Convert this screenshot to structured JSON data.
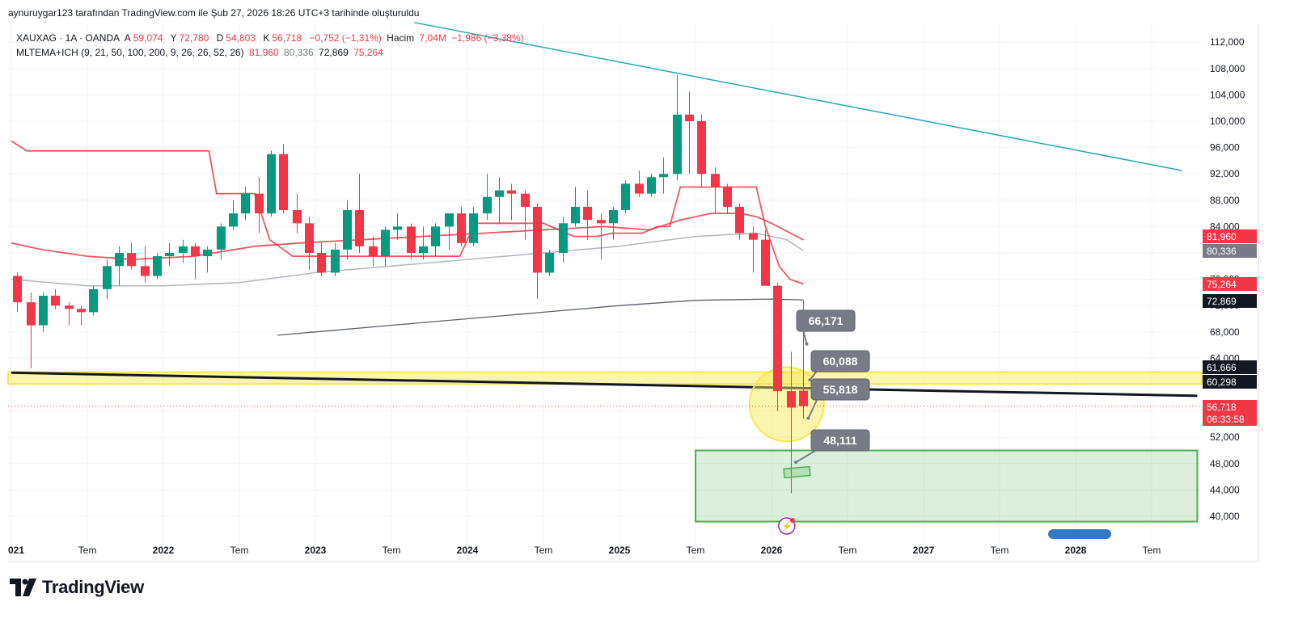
{
  "caption": "aynuruygar123 tarafından TradingView.com ile Şub 27, 2026 18:26 UTC+3 tarihinde oluşturuldu",
  "legend": {
    "symbol": "XAUXAG · 1A · OANDA",
    "o_label": "A",
    "o_value": "59,074",
    "h_label": "Y",
    "h_value": "72,780",
    "l_label": "D",
    "l_value": "54,803",
    "c_label": "K",
    "c_value": "56,718",
    "change": "−0,752 (−1,31%)",
    "volume_label": "Hacim",
    "volume_value": "7,04M",
    "volume_change": "−1,986 (−3,38%)",
    "indicator": "MLTEMA+ICH (9, 21, 50, 100, 200, 9, 26, 26, 52, 26)",
    "ind_v1": "81,960",
    "ind_v2": "80,336",
    "ind_v3": "72,869",
    "ind_v4": "75,264"
  },
  "brand": "TradingView",
  "colors": {
    "up": "#089981",
    "down": "#f23645",
    "support_zone": "#f5e94c",
    "target_zone": "#4caf50",
    "trendline": "#26a6b9"
  },
  "chart_data": {
    "type": "candlestick",
    "symbol": "XAUXAG",
    "interval": "1A",
    "ylim": [
      37,
      115
    ],
    "y_ticks": [
      40,
      44,
      48,
      52,
      64,
      68,
      72,
      76,
      84,
      88,
      92,
      96,
      100,
      104,
      108,
      112
    ],
    "y_tick_labels": [
      "40,000",
      "44,000",
      "48,000",
      "52,000",
      "64,000",
      "68,000",
      "72,000",
      "76,000",
      "84,000",
      "88,000",
      "92,000",
      "96,000",
      "100,000",
      "104,000",
      "108,000",
      "112,000"
    ],
    "x_ticks": [
      {
        "label": "021",
        "t": 2021.0
      },
      {
        "label": "Tem",
        "t": 2021.5
      },
      {
        "label": "2022",
        "t": 2022.0
      },
      {
        "label": "Tem",
        "t": 2022.5
      },
      {
        "label": "2023",
        "t": 2023.0
      },
      {
        "label": "Tem",
        "t": 2023.5
      },
      {
        "label": "2024",
        "t": 2024.0
      },
      {
        "label": "Tem",
        "t": 2024.5
      },
      {
        "label": "2025",
        "t": 2025.0
      },
      {
        "label": "Tem",
        "t": 2025.5
      },
      {
        "label": "2026",
        "t": 2026.0
      },
      {
        "label": "Tem",
        "t": 2026.5
      },
      {
        "label": "2027",
        "t": 2027.0
      },
      {
        "label": "Tem",
        "t": 2027.5
      },
      {
        "label": "2028",
        "t": 2028.0
      },
      {
        "label": "Tem",
        "t": 2028.5
      }
    ],
    "candles": [
      {
        "t": 2021.04,
        "o": 76.5,
        "h": 77,
        "l": 71,
        "c": 72.5
      },
      {
        "t": 2021.13,
        "o": 72.5,
        "h": 74,
        "l": 62.5,
        "c": 69
      },
      {
        "t": 2021.21,
        "o": 69,
        "h": 74,
        "l": 68,
        "c": 73.5
      },
      {
        "t": 2021.29,
        "o": 73.5,
        "h": 74.5,
        "l": 71.5,
        "c": 72
      },
      {
        "t": 2021.38,
        "o": 72,
        "h": 72.5,
        "l": 69,
        "c": 71.5
      },
      {
        "t": 2021.46,
        "o": 71.5,
        "h": 72,
        "l": 69,
        "c": 71
      },
      {
        "t": 2021.54,
        "o": 71,
        "h": 75,
        "l": 70.5,
        "c": 74.5
      },
      {
        "t": 2021.63,
        "o": 74.5,
        "h": 79,
        "l": 73,
        "c": 78
      },
      {
        "t": 2021.71,
        "o": 78,
        "h": 81,
        "l": 75,
        "c": 80
      },
      {
        "t": 2021.79,
        "o": 80,
        "h": 81.5,
        "l": 77.5,
        "c": 78
      },
      {
        "t": 2021.88,
        "o": 78,
        "h": 81,
        "l": 75.5,
        "c": 76.5
      },
      {
        "t": 2021.96,
        "o": 76.5,
        "h": 80,
        "l": 76,
        "c": 79.5
      },
      {
        "t": 2022.04,
        "o": 79.5,
        "h": 81.5,
        "l": 78,
        "c": 80
      },
      {
        "t": 2022.13,
        "o": 80,
        "h": 82,
        "l": 78.5,
        "c": 81
      },
      {
        "t": 2022.21,
        "o": 81,
        "h": 81.5,
        "l": 76,
        "c": 79.5
      },
      {
        "t": 2022.29,
        "o": 79.5,
        "h": 81,
        "l": 77,
        "c": 80.5
      },
      {
        "t": 2022.38,
        "o": 80.5,
        "h": 84.5,
        "l": 79,
        "c": 84
      },
      {
        "t": 2022.46,
        "o": 84,
        "h": 88,
        "l": 83.5,
        "c": 86
      },
      {
        "t": 2022.54,
        "o": 86,
        "h": 90,
        "l": 85,
        "c": 89
      },
      {
        "t": 2022.63,
        "o": 89,
        "h": 91.5,
        "l": 83,
        "c": 86
      },
      {
        "t": 2022.71,
        "o": 86,
        "h": 95.5,
        "l": 85.5,
        "c": 95
      },
      {
        "t": 2022.79,
        "o": 95,
        "h": 96.5,
        "l": 86,
        "c": 86.5
      },
      {
        "t": 2022.88,
        "o": 86.5,
        "h": 89,
        "l": 83,
        "c": 84.5
      },
      {
        "t": 2022.96,
        "o": 84.5,
        "h": 85.5,
        "l": 77.5,
        "c": 80
      },
      {
        "t": 2023.04,
        "o": 80,
        "h": 81.5,
        "l": 76.5,
        "c": 77
      },
      {
        "t": 2023.13,
        "o": 77,
        "h": 81.5,
        "l": 76.5,
        "c": 80.5
      },
      {
        "t": 2023.21,
        "o": 80.5,
        "h": 88,
        "l": 79,
        "c": 86.5
      },
      {
        "t": 2023.29,
        "o": 86.5,
        "h": 92,
        "l": 80,
        "c": 81
      },
      {
        "t": 2023.38,
        "o": 81,
        "h": 82.5,
        "l": 78,
        "c": 79.5
      },
      {
        "t": 2023.46,
        "o": 79.5,
        "h": 84,
        "l": 78,
        "c": 83.5
      },
      {
        "t": 2023.54,
        "o": 83.5,
        "h": 86,
        "l": 82,
        "c": 84
      },
      {
        "t": 2023.63,
        "o": 84,
        "h": 84.5,
        "l": 79,
        "c": 80
      },
      {
        "t": 2023.71,
        "o": 80,
        "h": 84,
        "l": 79,
        "c": 81
      },
      {
        "t": 2023.79,
        "o": 81,
        "h": 84.5,
        "l": 79.5,
        "c": 84
      },
      {
        "t": 2023.88,
        "o": 84,
        "h": 86,
        "l": 80.5,
        "c": 86
      },
      {
        "t": 2023.96,
        "o": 86,
        "h": 87,
        "l": 81,
        "c": 81.5
      },
      {
        "t": 2024.04,
        "o": 81.5,
        "h": 87,
        "l": 81,
        "c": 86
      },
      {
        "t": 2024.13,
        "o": 86,
        "h": 92,
        "l": 85,
        "c": 88.5
      },
      {
        "t": 2024.21,
        "o": 88.5,
        "h": 91.5,
        "l": 84.5,
        "c": 89.5
      },
      {
        "t": 2024.29,
        "o": 89.5,
        "h": 90.5,
        "l": 85,
        "c": 89
      },
      {
        "t": 2024.38,
        "o": 89,
        "h": 89.5,
        "l": 82,
        "c": 87
      },
      {
        "t": 2024.46,
        "o": 87,
        "h": 87.5,
        "l": 73,
        "c": 77
      },
      {
        "t": 2024.54,
        "o": 77,
        "h": 80.5,
        "l": 76.5,
        "c": 80
      },
      {
        "t": 2024.63,
        "o": 80,
        "h": 85.5,
        "l": 78.5,
        "c": 84.5
      },
      {
        "t": 2024.71,
        "o": 84.5,
        "h": 90,
        "l": 84,
        "c": 87
      },
      {
        "t": 2024.79,
        "o": 87,
        "h": 89.5,
        "l": 82,
        "c": 85
      },
      {
        "t": 2024.88,
        "o": 85,
        "h": 86,
        "l": 79,
        "c": 84.5
      },
      {
        "t": 2024.96,
        "o": 84.5,
        "h": 87,
        "l": 82,
        "c": 86.5
      },
      {
        "t": 2025.04,
        "o": 86.5,
        "h": 91,
        "l": 86,
        "c": 90.5
      },
      {
        "t": 2025.13,
        "o": 90.5,
        "h": 92.5,
        "l": 88.5,
        "c": 89
      },
      {
        "t": 2025.21,
        "o": 89,
        "h": 92,
        "l": 88.5,
        "c": 91.5
      },
      {
        "t": 2025.29,
        "o": 91.5,
        "h": 94.5,
        "l": 89,
        "c": 92
      },
      {
        "t": 2025.38,
        "o": 92,
        "h": 107,
        "l": 91,
        "c": 101
      },
      {
        "t": 2025.46,
        "o": 101,
        "h": 104.5,
        "l": 92,
        "c": 100
      },
      {
        "t": 2025.54,
        "o": 100,
        "h": 101,
        "l": 90,
        "c": 92
      },
      {
        "t": 2025.63,
        "o": 92,
        "h": 93,
        "l": 86,
        "c": 90
      },
      {
        "t": 2025.71,
        "o": 90,
        "h": 90.5,
        "l": 86,
        "c": 87
      },
      {
        "t": 2025.79,
        "o": 87,
        "h": 87.5,
        "l": 82,
        "c": 83
      },
      {
        "t": 2025.88,
        "o": 83,
        "h": 84,
        "l": 77,
        "c": 82
      },
      {
        "t": 2025.96,
        "o": 82,
        "h": 83.5,
        "l": 75,
        "c": 75
      },
      {
        "t": 2026.04,
        "o": 75,
        "h": 75.5,
        "l": 56,
        "c": 59
      },
      {
        "t": 2026.13,
        "o": 59,
        "h": 65,
        "l": 43.5,
        "c": 56.5
      },
      {
        "t": 2026.21,
        "o": 59.074,
        "h": 72.78,
        "l": 54.803,
        "c": 56.718
      }
    ],
    "ema_red_upper": [
      [
        2021.0,
        97
      ],
      [
        2021.1,
        95.5
      ],
      [
        2022.3,
        95.5
      ],
      [
        2022.35,
        89
      ],
      [
        2022.6,
        89
      ],
      [
        2022.7,
        82
      ],
      [
        2022.85,
        79.5
      ],
      [
        2023.95,
        79.5
      ],
      [
        2024.05,
        84.5
      ],
      [
        2024.5,
        84.5
      ],
      [
        2024.7,
        82.5
      ],
      [
        2024.85,
        82.5
      ],
      [
        2024.95,
        83
      ],
      [
        2025.15,
        83
      ],
      [
        2025.25,
        84
      ],
      [
        2025.33,
        84
      ],
      [
        2025.4,
        90
      ],
      [
        2025.9,
        90
      ],
      [
        2025.96,
        84
      ],
      [
        2026.05,
        78
      ],
      [
        2026.12,
        76
      ],
      [
        2026.21,
        75.264
      ]
    ],
    "ema_red_lower": [
      [
        2021.0,
        81.5
      ],
      [
        2021.2,
        80.5
      ],
      [
        2021.5,
        79.5
      ],
      [
        2021.8,
        79
      ],
      [
        2022.2,
        79.5
      ],
      [
        2022.6,
        81
      ],
      [
        2022.9,
        81.5
      ],
      [
        2023.3,
        82
      ],
      [
        2023.7,
        82.5
      ],
      [
        2024.1,
        83
      ],
      [
        2024.5,
        83.5
      ],
      [
        2024.9,
        84
      ],
      [
        2025.2,
        83.5
      ],
      [
        2025.4,
        85
      ],
      [
        2025.6,
        86
      ],
      [
        2025.8,
        86
      ],
      [
        2025.9,
        85.5
      ],
      [
        2026.0,
        84.5
      ],
      [
        2026.21,
        81.96
      ]
    ],
    "sma_grey": [
      [
        2021.0,
        76
      ],
      [
        2021.5,
        75
      ],
      [
        2022.0,
        75
      ],
      [
        2022.5,
        75.5
      ],
      [
        2023.0,
        77
      ],
      [
        2023.5,
        78
      ],
      [
        2024.0,
        79
      ],
      [
        2024.5,
        80
      ],
      [
        2025.0,
        81
      ],
      [
        2025.5,
        82.5
      ],
      [
        2025.9,
        83
      ],
      [
        2026.1,
        82
      ],
      [
        2026.21,
        80.336
      ]
    ],
    "sma_dark": [
      [
        2022.75,
        67.5
      ],
      [
        2023.0,
        68
      ],
      [
        2023.5,
        69
      ],
      [
        2024.0,
        70
      ],
      [
        2024.5,
        71
      ],
      [
        2025.0,
        72
      ],
      [
        2025.5,
        72.8
      ],
      [
        2026.0,
        73
      ],
      [
        2026.21,
        72.869
      ]
    ],
    "trendline_teal": [
      [
        2023.65,
        115
      ],
      [
        2028.7,
        92.5
      ]
    ],
    "trendline_black": [
      [
        2021.0,
        61.8
      ],
      [
        2028.8,
        58.3
      ]
    ],
    "zones": {
      "yellow_band": [
        60.1,
        61.9
      ],
      "green_box": {
        "t_from": 2025.5,
        "t_to": 2028.8,
        "y_from": 39.2,
        "y_to": 50
      }
    },
    "annotations": [
      {
        "text": "66,171",
        "t": 2026.21,
        "y": 66.171
      },
      {
        "text": "60,088",
        "t": 2026.21,
        "y": 60.088
      },
      {
        "text": "55,818",
        "t": 2026.21,
        "y": 55.818
      },
      {
        "text": "48,111",
        "t": 2026.18,
        "y": 48.111
      }
    ],
    "price_labels": [
      {
        "text": "81,960",
        "y": 81.96,
        "bg": "#f23645",
        "fg": "#ffffff"
      },
      {
        "text": "80,336",
        "y": 80.336,
        "bg": "#787b86",
        "fg": "#ffffff"
      },
      {
        "text": "75,264",
        "y": 75.264,
        "bg": "#f23645",
        "fg": "#ffffff"
      },
      {
        "text": "72,869",
        "y": 72.869,
        "bg": "#131722",
        "fg": "#ffffff"
      },
      {
        "text": "61,666",
        "y": 61.666,
        "bg": "#131722",
        "fg": "#ffffff"
      },
      {
        "text": "60,298",
        "y": 60.298,
        "bg": "#131722",
        "fg": "#ffffff"
      },
      {
        "text": "56,718",
        "y": 56.718,
        "bg": "#f23645",
        "fg": "#ffffff",
        "sub": "06:33:58"
      }
    ]
  }
}
